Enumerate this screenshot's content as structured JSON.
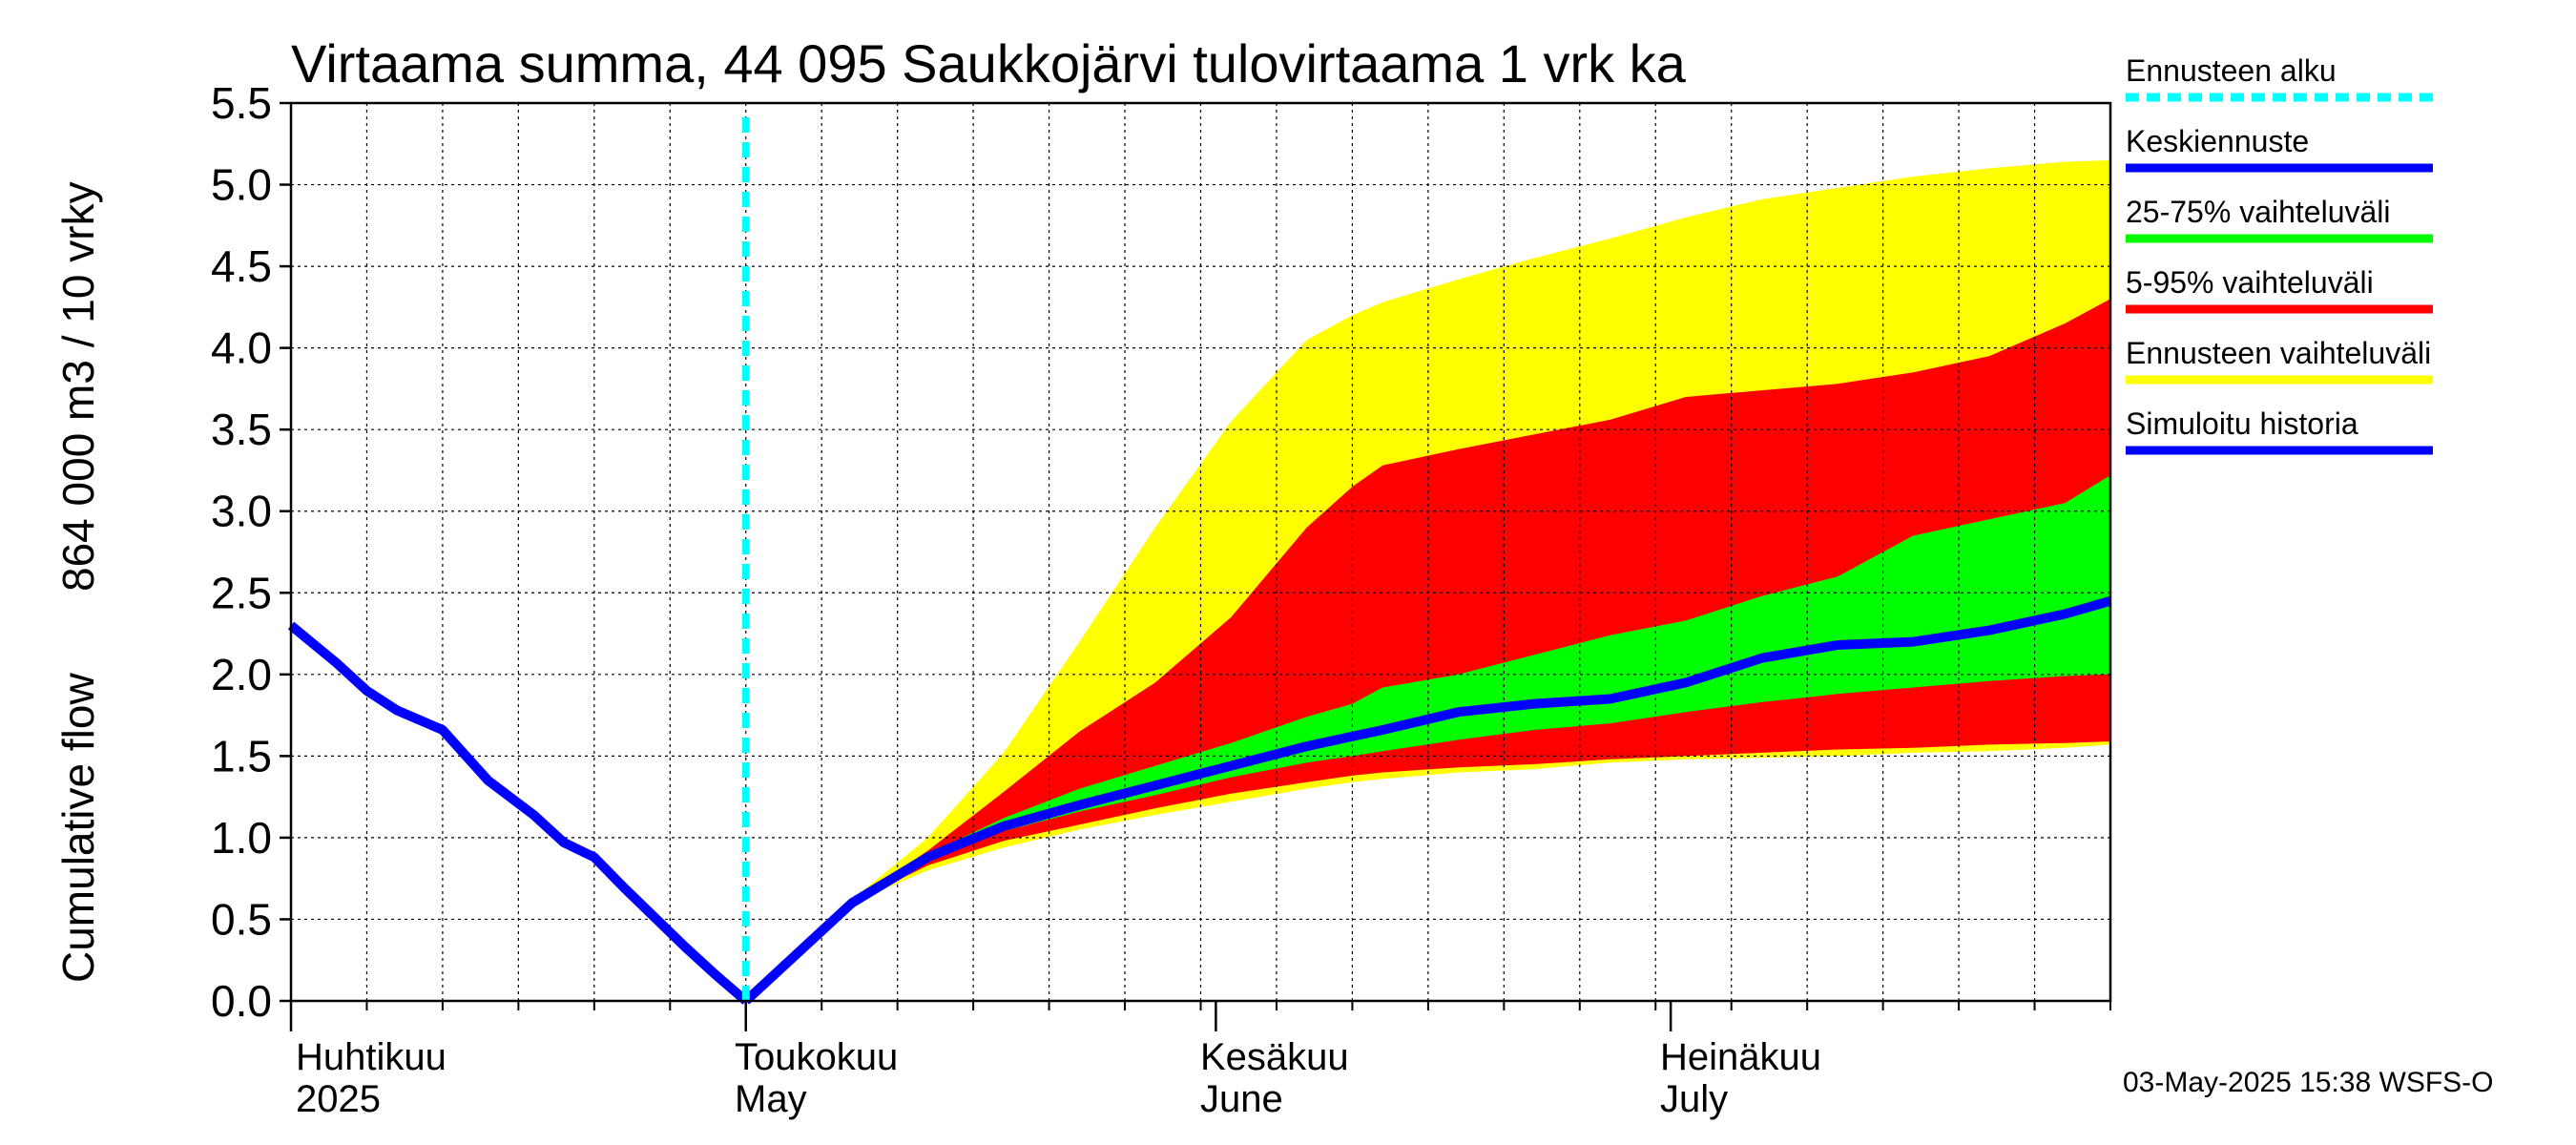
{
  "chart_data": {
    "type": "area",
    "title": "Virtaama summa, 44 095 Saukkojärvi tulovirtaama 1 vrk ka",
    "ylabel_line1": "Cumulative flow",
    "ylabel_line2": "864 000 m3 / 10 vrky",
    "ylim": [
      0,
      5.5
    ],
    "yticks": [
      0.0,
      0.5,
      1.0,
      1.5,
      2.0,
      2.5,
      3.0,
      3.5,
      4.0,
      4.5,
      5.0,
      5.5
    ],
    "ytick_labels": [
      "0.0",
      "0.5",
      "1.0",
      "1.5",
      "2.0",
      "2.5",
      "3.0",
      "3.5",
      "4.0",
      "4.5",
      "5.0",
      "5.5"
    ],
    "x_domain_days": [
      0,
      120
    ],
    "month_starts": [
      0,
      30,
      61,
      91
    ],
    "month_labels": [
      {
        "fi": "Huhtikuu",
        "en": "2025"
      },
      {
        "fi": "Toukokuu",
        "en": "May"
      },
      {
        "fi": "Kesäkuu",
        "en": "June"
      },
      {
        "fi": "Heinäkuu",
        "en": "July"
      }
    ],
    "forecast_start_day": 30,
    "history": {
      "name": "Simuloitu historia",
      "x": [
        0,
        3,
        5,
        7,
        9,
        10,
        13,
        16,
        18,
        20,
        22,
        26,
        28,
        30
      ],
      "y": [
        2.3,
        2.07,
        1.9,
        1.78,
        1.7,
        1.66,
        1.35,
        1.14,
        0.97,
        0.88,
        0.69,
        0.33,
        0.16,
        0.0
      ]
    },
    "forecast_x": [
      30,
      37,
      42,
      47,
      52,
      57,
      62,
      67,
      70,
      72,
      77,
      82,
      87,
      92,
      97,
      102,
      107,
      112,
      117,
      120
    ],
    "median": {
      "name": "Keskiennuste",
      "y": [
        0.0,
        0.6,
        0.88,
        1.07,
        1.2,
        1.32,
        1.44,
        1.56,
        1.62,
        1.66,
        1.77,
        1.82,
        1.85,
        1.95,
        2.1,
        2.18,
        2.2,
        2.27,
        2.37,
        2.45
      ]
    },
    "band_25_75": {
      "name": "25-75% vaihteluväli",
      "lower": [
        0.0,
        0.6,
        0.86,
        1.04,
        1.16,
        1.26,
        1.37,
        1.46,
        1.5,
        1.53,
        1.6,
        1.66,
        1.7,
        1.77,
        1.83,
        1.88,
        1.92,
        1.96,
        1.99,
        2.0
      ],
      "upper": [
        0.0,
        0.6,
        0.9,
        1.12,
        1.3,
        1.44,
        1.58,
        1.74,
        1.82,
        1.92,
        2.0,
        2.12,
        2.24,
        2.33,
        2.48,
        2.6,
        2.85,
        2.95,
        3.05,
        3.22
      ]
    },
    "band_5_95": {
      "name": "5-95% vaihteluväli",
      "lower": [
        0.0,
        0.6,
        0.83,
        0.98,
        1.08,
        1.18,
        1.27,
        1.34,
        1.38,
        1.4,
        1.43,
        1.45,
        1.48,
        1.5,
        1.52,
        1.54,
        1.55,
        1.57,
        1.58,
        1.59
      ],
      "upper": [
        0.0,
        0.6,
        0.92,
        1.28,
        1.65,
        1.95,
        2.35,
        2.9,
        3.15,
        3.28,
        3.38,
        3.47,
        3.56,
        3.7,
        3.74,
        3.78,
        3.85,
        3.95,
        4.15,
        4.3
      ]
    },
    "band_full": {
      "name": "Ennusteen vaihteluväli",
      "lower": [
        0.0,
        0.6,
        0.8,
        0.94,
        1.05,
        1.14,
        1.22,
        1.3,
        1.34,
        1.36,
        1.4,
        1.42,
        1.46,
        1.48,
        1.49,
        1.5,
        1.52,
        1.53,
        1.55,
        1.57
      ],
      "upper": [
        0.0,
        0.62,
        1.0,
        1.52,
        2.2,
        2.9,
        3.55,
        4.05,
        4.2,
        4.28,
        4.42,
        4.55,
        4.67,
        4.8,
        4.91,
        4.98,
        5.05,
        5.1,
        5.14,
        5.15
      ]
    },
    "colors": {
      "forecast_line": "#00ffff",
      "median": "#0000ff",
      "band_25_75": "#00ff00",
      "band_5_95": "#ff0000",
      "band_full": "#ffff00",
      "history": "#0000ff",
      "grid": "#000000"
    }
  },
  "legend": [
    {
      "label": "Ennusteen alku",
      "color": "#00ffff",
      "style": "dashed"
    },
    {
      "label": "Keskiennuste",
      "color": "#0000ff",
      "style": "solid"
    },
    {
      "label": "25-75% vaihteluväli",
      "color": "#00ff00",
      "style": "solid"
    },
    {
      "label": "5-95% vaihteluväli",
      "color": "#ff0000",
      "style": "solid"
    },
    {
      "label": "Ennusteen vaihteluväli",
      "color": "#ffff00",
      "style": "solid"
    },
    {
      "label": "Simuloitu historia",
      "color": "#0000ff",
      "style": "solid"
    }
  ],
  "footer": "03-May-2025 15:38 WSFS-O"
}
